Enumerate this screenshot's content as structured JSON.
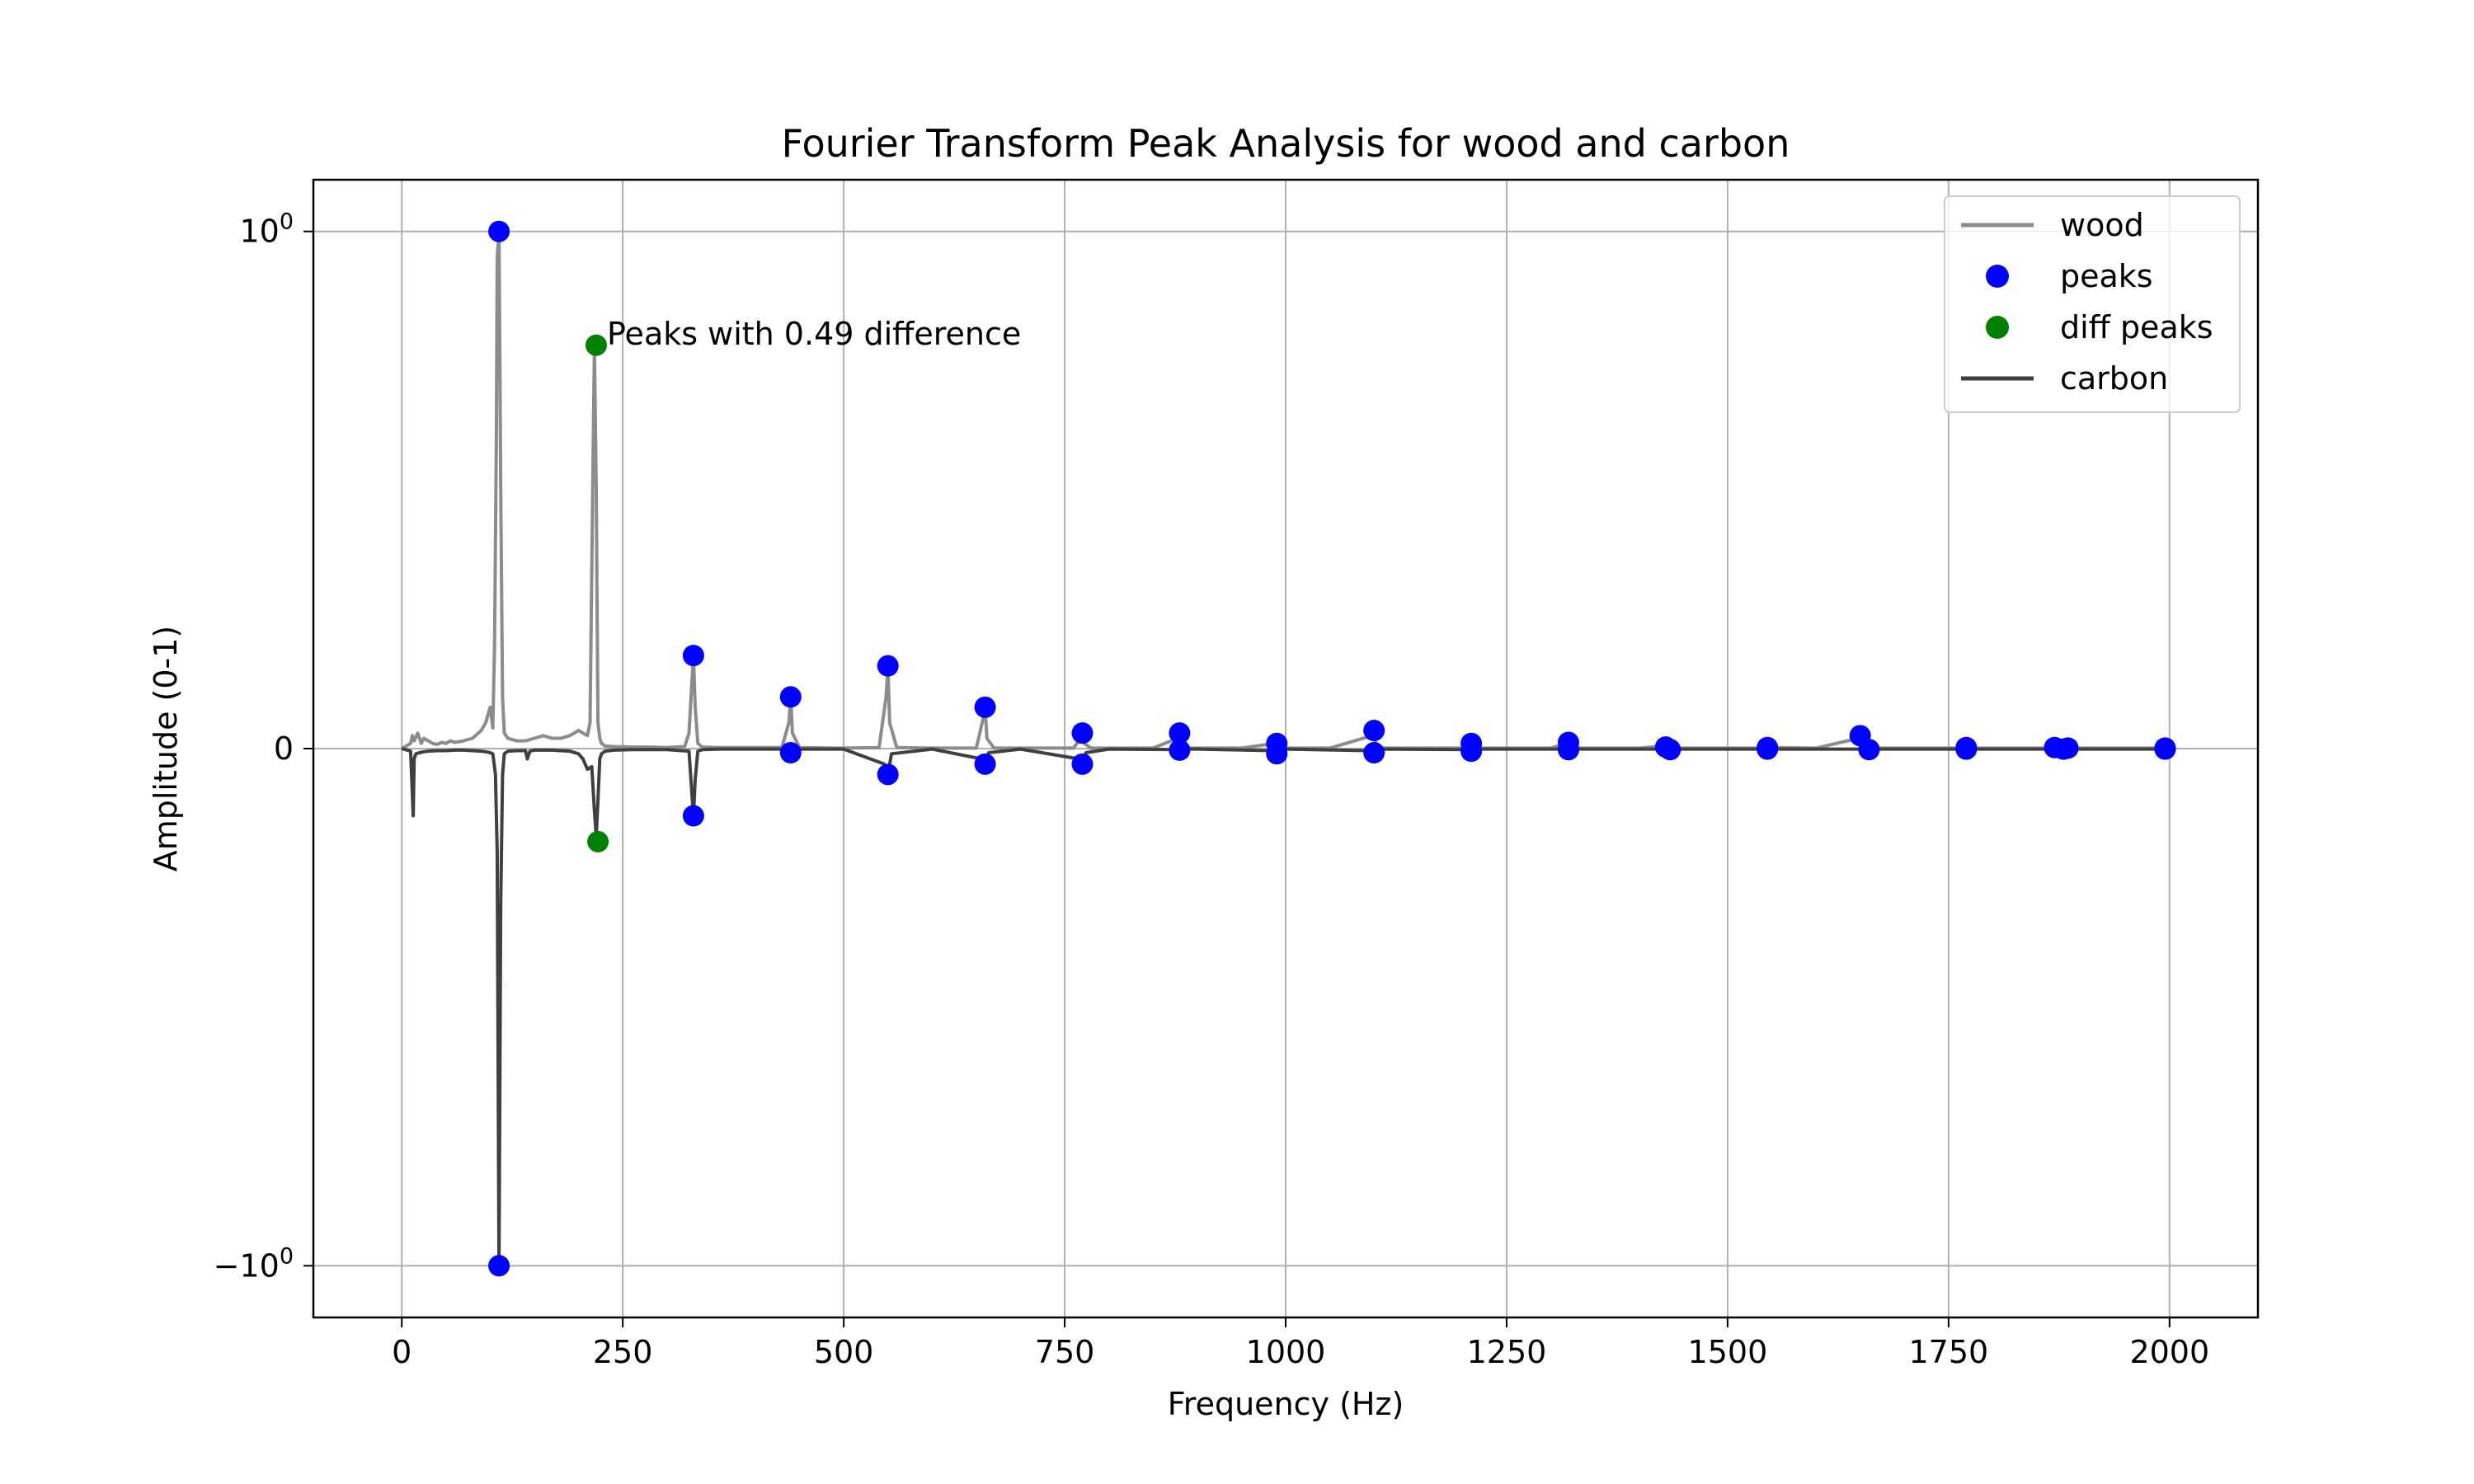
{
  "chart_data": {
    "type": "line",
    "title": "Fourier Transform Peak Analysis for wood and carbon",
    "xlabel": "Frequency (Hz)",
    "ylabel": "Amplitude (0-1)",
    "xlim": [
      -100,
      2100
    ],
    "ylim": [
      -1.1,
      1.1
    ],
    "x_ticks": [
      0,
      250,
      500,
      750,
      1000,
      1250,
      1500,
      1750,
      2000
    ],
    "x_tick_labels": [
      "0",
      "250",
      "500",
      "750",
      "1000",
      "1250",
      "1500",
      "1750",
      "2000"
    ],
    "y_ticks": [
      {
        "value": 1,
        "base": "10",
        "exp": "0",
        "sign": ""
      },
      {
        "value": 0,
        "plain": "0"
      },
      {
        "value": -1,
        "base": "10",
        "exp": "0",
        "sign": "−"
      }
    ],
    "grid": true,
    "legend_position": "top-right",
    "legend": [
      {
        "label": "wood",
        "kind": "line",
        "color": "#8c8c8c"
      },
      {
        "label": "peaks",
        "kind": "dot",
        "color": "#0000ff"
      },
      {
        "label": "diff peaks",
        "kind": "dot",
        "color": "#008000"
      },
      {
        "label": "carbon",
        "kind": "line",
        "color": "#404040"
      }
    ],
    "annotation": {
      "text": "Peaks with 0.49 difference",
      "x": 220,
      "y": 0.78
    },
    "series": [
      {
        "name": "wood",
        "color": "#8c8c8c",
        "x": [
          0,
          5,
          10,
          12,
          14,
          18,
          22,
          25,
          30,
          35,
          40,
          45,
          50,
          55,
          60,
          70,
          80,
          90,
          95,
          100,
          103,
          105,
          107,
          108,
          110,
          112,
          114,
          116,
          120,
          130,
          140,
          150,
          160,
          170,
          180,
          190,
          195,
          200,
          205,
          210,
          213,
          216,
          218,
          220,
          222,
          224,
          226,
          230,
          240,
          260,
          280,
          300,
          320,
          325,
          328,
          330,
          332,
          335,
          340,
          360,
          400,
          430,
          438,
          440,
          442,
          450,
          500,
          540,
          548,
          550,
          552,
          560,
          600,
          650,
          658,
          660,
          662,
          670,
          700,
          760,
          768,
          770,
          772,
          780,
          850,
          878,
          880,
          882,
          890,
          950,
          988,
          990,
          992,
          1000,
          1050,
          1098,
          1100,
          1102,
          1110,
          1200,
          1208,
          1210,
          1212,
          1220,
          1300,
          1318,
          1320,
          1322,
          1330,
          1400,
          1428,
          1430,
          1432,
          1440,
          1500,
          1540,
          1550,
          1600,
          1648,
          1650,
          1652,
          1660,
          1700,
          1770,
          1800,
          1870,
          1900,
          1990,
          2000
        ],
        "y": [
          0,
          0.005,
          0.01,
          0.025,
          0.015,
          0.03,
          0.01,
          0.02,
          0.015,
          0.01,
          0.008,
          0.012,
          0.01,
          0.015,
          0.012,
          0.015,
          0.02,
          0.035,
          0.05,
          0.08,
          0.04,
          0.2,
          0.6,
          0.95,
          1.0,
          0.5,
          0.1,
          0.03,
          0.02,
          0.015,
          0.015,
          0.02,
          0.025,
          0.02,
          0.02,
          0.025,
          0.03,
          0.035,
          0.03,
          0.025,
          0.05,
          0.5,
          0.78,
          0.5,
          0.05,
          0.02,
          0.01,
          0.005,
          0.004,
          0.003,
          0.003,
          0.002,
          0.004,
          0.03,
          0.12,
          0.18,
          0.08,
          0.01,
          0.003,
          0.002,
          0.002,
          0.002,
          0.05,
          0.1,
          0.03,
          0.002,
          0.001,
          0.002,
          0.1,
          0.16,
          0.05,
          0.002,
          0.001,
          0.001,
          0.06,
          0.08,
          0.02,
          0.001,
          0.001,
          0.001,
          0.02,
          0.03,
          0.01,
          0.001,
          0.001,
          0.02,
          0.03,
          0.01,
          0.001,
          0.001,
          0.01,
          0.015,
          0.005,
          0.001,
          0.001,
          0.025,
          0.035,
          0.01,
          0.001,
          0.001,
          0.008,
          0.012,
          0.004,
          0.001,
          0.001,
          0.01,
          0.015,
          0.005,
          0.001,
          0.001,
          0.005,
          0.008,
          0.003,
          0.001,
          0.001,
          0.001,
          0.002,
          0.001,
          0.02,
          0.025,
          0.008,
          0.001,
          0.001,
          0.001,
          0.001,
          0.001,
          0.001,
          0.001,
          0
        ]
      },
      {
        "name": "carbon",
        "color": "#404040",
        "x": [
          0,
          10,
          13,
          14,
          16,
          20,
          25,
          30,
          40,
          50,
          60,
          70,
          80,
          90,
          95,
          100,
          103,
          106,
          108,
          110,
          112,
          114,
          116,
          120,
          130,
          140,
          142,
          145,
          150,
          170,
          190,
          200,
          205,
          210,
          215,
          218,
          220,
          222,
          224,
          226,
          230,
          240,
          260,
          300,
          325,
          328,
          330,
          332,
          335,
          340,
          360,
          400,
          436,
          440,
          444,
          500,
          546,
          550,
          554,
          600,
          656,
          660,
          664,
          700,
          766,
          770,
          774,
          800,
          876,
          880,
          884,
          900,
          986,
          990,
          994,
          1000,
          1096,
          1100,
          1104,
          1110,
          1206,
          1210,
          1214,
          1300,
          1316,
          1320,
          1324,
          1330,
          1426,
          1430,
          1434,
          1500,
          1546,
          1550,
          1554,
          1600,
          1650,
          1700,
          1770,
          1800,
          1870,
          1880,
          1900,
          1990,
          2000
        ],
        "y": [
          0,
          -0.005,
          -0.13,
          -0.02,
          -0.01,
          -0.008,
          -0.006,
          -0.005,
          -0.004,
          -0.004,
          -0.003,
          -0.003,
          -0.004,
          -0.005,
          -0.006,
          -0.008,
          -0.01,
          -0.05,
          -0.2,
          -1.0,
          -0.3,
          -0.05,
          -0.01,
          -0.005,
          -0.004,
          -0.004,
          -0.02,
          -0.005,
          -0.003,
          -0.003,
          -0.005,
          -0.01,
          -0.02,
          -0.04,
          -0.035,
          -0.12,
          -0.17,
          -0.1,
          -0.02,
          -0.01,
          -0.005,
          -0.003,
          -0.002,
          -0.002,
          -0.005,
          -0.08,
          -0.13,
          -0.06,
          -0.005,
          -0.002,
          -0.001,
          -0.001,
          -0.001,
          -0.005,
          -0.001,
          -0.001,
          -0.03,
          -0.05,
          -0.01,
          -0.001,
          -0.02,
          -0.03,
          -0.008,
          -0.001,
          -0.02,
          -0.03,
          -0.008,
          -0.001,
          -0.002,
          -0.004,
          -0.001,
          -0.001,
          -0.004,
          -0.008,
          -0.002,
          -0.001,
          -0.004,
          -0.008,
          -0.002,
          -0.001,
          -0.002,
          -0.004,
          -0.001,
          -0.001,
          -0.001,
          -0.002,
          -0.001,
          -0.001,
          -0.001,
          -0.003,
          -0.001,
          -0.001,
          -0.001,
          -0.002,
          -0.001,
          -0.001,
          -0.001,
          -0.001,
          -0.001,
          -0.001,
          -0.001,
          -0.001,
          -0.001,
          -0.001,
          0
        ]
      }
    ],
    "peaks": {
      "color": "#0000ff",
      "points": [
        {
          "x": 110,
          "y": 1.0
        },
        {
          "x": 330,
          "y": 0.18
        },
        {
          "x": 440,
          "y": 0.1
        },
        {
          "x": 550,
          "y": 0.16
        },
        {
          "x": 660,
          "y": 0.08
        },
        {
          "x": 770,
          "y": 0.03
        },
        {
          "x": 880,
          "y": 0.03
        },
        {
          "x": 990,
          "y": 0.01
        },
        {
          "x": 1100,
          "y": 0.035
        },
        {
          "x": 1210,
          "y": 0.01
        },
        {
          "x": 1320,
          "y": 0.012
        },
        {
          "x": 1430,
          "y": 0.003
        },
        {
          "x": 1545,
          "y": 0.002
        },
        {
          "x": 1650,
          "y": 0.025
        },
        {
          "x": 1770,
          "y": 0.002
        },
        {
          "x": 1870,
          "y": 0.002
        },
        {
          "x": 1885,
          "y": 0.001
        },
        {
          "x": 1995,
          "y": 0.001
        },
        {
          "x": 110,
          "y": -1.0
        },
        {
          "x": 330,
          "y": -0.13
        },
        {
          "x": 440,
          "y": -0.008
        },
        {
          "x": 550,
          "y": -0.05
        },
        {
          "x": 660,
          "y": -0.03
        },
        {
          "x": 770,
          "y": -0.03
        },
        {
          "x": 880,
          "y": -0.003
        },
        {
          "x": 990,
          "y": -0.01
        },
        {
          "x": 1100,
          "y": -0.008
        },
        {
          "x": 1210,
          "y": -0.005
        },
        {
          "x": 1320,
          "y": -0.002
        },
        {
          "x": 1435,
          "y": -0.002
        },
        {
          "x": 1545,
          "y": -0.001
        },
        {
          "x": 1660,
          "y": -0.002
        },
        {
          "x": 1770,
          "y": -0.001
        },
        {
          "x": 1880,
          "y": -0.001
        },
        {
          "x": 1995,
          "y": -0.001
        }
      ]
    },
    "diff_peaks": {
      "color": "#008000",
      "points": [
        {
          "x": 220,
          "y": 0.78
        },
        {
          "x": 222,
          "y": -0.18
        }
      ]
    }
  }
}
